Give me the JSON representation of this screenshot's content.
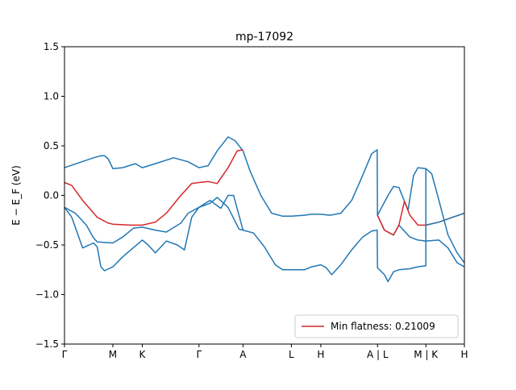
{
  "chart_data": {
    "type": "line",
    "title": "mp-17092",
    "ylabel": "E − E_F (eV)",
    "xlabel": "",
    "xlim": [
      0,
      11.0
    ],
    "ylim": [
      -1.5,
      1.5
    ],
    "yticks": [
      -1.5,
      -1.0,
      -0.5,
      0.0,
      0.5,
      1.0,
      1.5
    ],
    "ytick_labels": [
      "−1.5",
      "−1.0",
      "−0.5",
      "0.0",
      "0.5",
      "1.0",
      "1.5"
    ],
    "xticks": [
      {
        "x": 0.0,
        "label": "Γ"
      },
      {
        "x": 1.33,
        "label": "M"
      },
      {
        "x": 2.14,
        "label": "K"
      },
      {
        "x": 3.7,
        "label": "Γ"
      },
      {
        "x": 4.91,
        "label": "A"
      },
      {
        "x": 6.24,
        "label": "L"
      },
      {
        "x": 7.05,
        "label": "H"
      },
      {
        "x": 8.61,
        "label": "A | L"
      },
      {
        "x": 9.94,
        "label": "M | K"
      },
      {
        "x": 11.0,
        "label": "H"
      }
    ],
    "grid": false,
    "legend": {
      "position": "lower-right",
      "entries": [
        {
          "label": "Min flatness: 0.21009",
          "color": "#d62728"
        }
      ]
    },
    "series": [
      {
        "color": "#1f77b4",
        "points": [
          [
            0.0,
            0.28
          ],
          [
            0.4,
            0.33
          ],
          [
            0.8,
            0.38
          ],
          [
            1.0,
            0.4
          ],
          [
            1.1,
            0.4
          ],
          [
            1.2,
            0.37
          ],
          [
            1.33,
            0.27
          ],
          [
            1.6,
            0.28
          ],
          [
            1.95,
            0.32
          ],
          [
            2.14,
            0.28
          ],
          [
            2.5,
            0.32
          ],
          [
            3.0,
            0.38
          ],
          [
            3.4,
            0.34
          ],
          [
            3.7,
            0.28
          ],
          [
            3.95,
            0.3
          ],
          [
            4.2,
            0.45
          ],
          [
            4.5,
            0.59
          ],
          [
            4.7,
            0.55
          ],
          [
            4.91,
            0.45
          ],
          [
            5.1,
            0.25
          ],
          [
            5.4,
            0.0
          ],
          [
            5.7,
            -0.18
          ],
          [
            6.0,
            -0.21
          ],
          [
            6.24,
            -0.21
          ],
          [
            6.6,
            -0.2
          ],
          [
            6.8,
            -0.19
          ],
          [
            7.05,
            -0.19
          ],
          [
            7.3,
            -0.2
          ],
          [
            7.6,
            -0.18
          ],
          [
            7.9,
            -0.05
          ],
          [
            8.2,
            0.2
          ],
          [
            8.45,
            0.42
          ],
          [
            8.6,
            0.46
          ],
          [
            8.61,
            -0.2
          ],
          [
            8.9,
            0.0
          ],
          [
            9.05,
            0.09
          ],
          [
            9.2,
            0.08
          ],
          [
            9.45,
            -0.15
          ],
          [
            9.6,
            0.2
          ],
          [
            9.72,
            0.28
          ],
          [
            9.94,
            0.27
          ],
          [
            10.1,
            0.22
          ],
          [
            10.3,
            -0.05
          ],
          [
            10.55,
            -0.4
          ],
          [
            10.8,
            -0.58
          ],
          [
            11.0,
            -0.68
          ]
        ]
      },
      {
        "color": "#1f77b4",
        "points": [
          [
            0.0,
            -0.12
          ],
          [
            0.2,
            -0.22
          ],
          [
            0.5,
            -0.53
          ],
          [
            0.8,
            -0.48
          ],
          [
            0.9,
            -0.52
          ],
          [
            1.0,
            -0.72
          ],
          [
            1.1,
            -0.76
          ],
          [
            1.33,
            -0.72
          ],
          [
            1.6,
            -0.62
          ],
          [
            2.14,
            -0.45
          ],
          [
            2.3,
            -0.5
          ],
          [
            2.5,
            -0.58
          ],
          [
            2.8,
            -0.46
          ],
          [
            3.1,
            -0.5
          ],
          [
            3.3,
            -0.55
          ],
          [
            3.5,
            -0.22
          ],
          [
            3.7,
            -0.12
          ],
          [
            4.0,
            -0.08
          ],
          [
            4.2,
            -0.02
          ],
          [
            4.5,
            -0.12
          ],
          [
            4.8,
            -0.34
          ],
          [
            4.91,
            -0.35
          ],
          [
            5.2,
            -0.38
          ],
          [
            5.5,
            -0.52
          ],
          [
            5.8,
            -0.7
          ],
          [
            6.0,
            -0.75
          ],
          [
            6.24,
            -0.75
          ],
          [
            6.6,
            -0.75
          ],
          [
            6.8,
            -0.72
          ],
          [
            7.05,
            -0.7
          ],
          [
            7.2,
            -0.73
          ],
          [
            7.35,
            -0.8
          ],
          [
            7.6,
            -0.7
          ],
          [
            7.9,
            -0.55
          ],
          [
            8.2,
            -0.42
          ],
          [
            8.45,
            -0.36
          ],
          [
            8.6,
            -0.35
          ],
          [
            8.61,
            -0.73
          ],
          [
            8.8,
            -0.8
          ],
          [
            8.9,
            -0.87
          ],
          [
            9.05,
            -0.77
          ],
          [
            9.2,
            -0.75
          ],
          [
            9.5,
            -0.74
          ],
          [
            9.72,
            -0.72
          ],
          [
            9.94,
            -0.71
          ],
          [
            9.94,
            0.27
          ]
        ]
      },
      {
        "color": "#1f77b4",
        "points": [
          [
            0.0,
            -0.12
          ],
          [
            0.3,
            -0.18
          ],
          [
            0.6,
            -0.3
          ],
          [
            0.8,
            -0.43
          ],
          [
            0.9,
            -0.47
          ],
          [
            1.33,
            -0.48
          ],
          [
            1.6,
            -0.42
          ],
          [
            1.9,
            -0.33
          ],
          [
            2.14,
            -0.32
          ],
          [
            2.5,
            -0.35
          ],
          [
            2.8,
            -0.37
          ],
          [
            3.2,
            -0.28
          ],
          [
            3.4,
            -0.18
          ],
          [
            3.7,
            -0.12
          ],
          [
            4.0,
            -0.05
          ],
          [
            4.3,
            -0.13
          ],
          [
            4.5,
            0.0
          ],
          [
            4.65,
            0.0
          ],
          [
            4.91,
            -0.35
          ]
        ]
      },
      {
        "color": "#1f77b4",
        "points": [
          [
            8.61,
            -0.2
          ],
          [
            8.8,
            -0.35
          ],
          [
            9.05,
            -0.4
          ],
          [
            9.2,
            -0.3
          ],
          [
            9.5,
            -0.42
          ],
          [
            9.72,
            -0.45
          ],
          [
            9.94,
            -0.46
          ],
          [
            10.3,
            -0.45
          ],
          [
            10.55,
            -0.53
          ],
          [
            10.8,
            -0.68
          ],
          [
            11.0,
            -0.72
          ]
        ]
      },
      {
        "color": "#d62728",
        "points": [
          [
            0.0,
            0.13
          ],
          [
            0.2,
            0.1
          ],
          [
            0.5,
            -0.05
          ],
          [
            0.9,
            -0.22
          ],
          [
            1.2,
            -0.28
          ],
          [
            1.33,
            -0.29
          ],
          [
            1.8,
            -0.3
          ],
          [
            2.14,
            -0.3
          ],
          [
            2.5,
            -0.27
          ],
          [
            2.8,
            -0.18
          ],
          [
            3.2,
            0.0
          ],
          [
            3.5,
            0.12
          ],
          [
            3.7,
            0.13
          ],
          [
            3.95,
            0.14
          ],
          [
            4.2,
            0.12
          ],
          [
            4.5,
            0.28
          ],
          [
            4.75,
            0.45
          ],
          [
            4.91,
            0.46
          ]
        ]
      },
      {
        "color": "#d62728",
        "points": [
          [
            8.61,
            -0.2
          ],
          [
            8.8,
            -0.35
          ],
          [
            9.05,
            -0.4
          ],
          [
            9.2,
            -0.3
          ],
          [
            9.35,
            -0.06
          ],
          [
            9.5,
            -0.2
          ],
          [
            9.72,
            -0.3
          ],
          [
            9.94,
            -0.3
          ],
          [
            10.3,
            -0.27
          ],
          [
            10.6,
            -0.23
          ],
          [
            11.0,
            -0.18
          ]
        ]
      },
      {
        "color": "#1f77b4",
        "points": [
          [
            9.94,
            -0.3
          ],
          [
            10.3,
            -0.27
          ],
          [
            10.6,
            -0.23
          ],
          [
            11.0,
            -0.18
          ]
        ]
      }
    ]
  }
}
